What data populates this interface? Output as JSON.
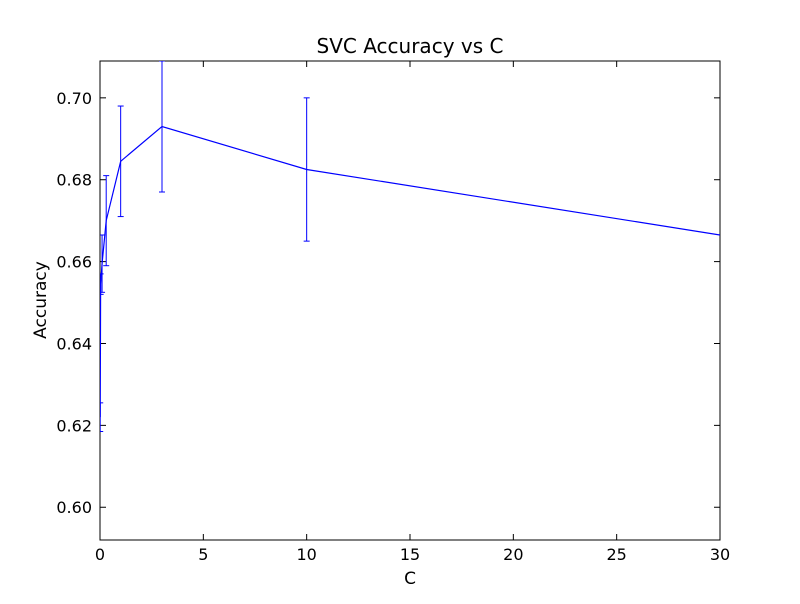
{
  "chart_data": {
    "type": "line",
    "title": "SVC Accuracy vs C",
    "xlabel": "C",
    "ylabel": "Accuracy",
    "xlim": [
      0,
      30
    ],
    "ylim": [
      0.592,
      0.709
    ],
    "x_ticks": [
      0,
      5,
      10,
      15,
      20,
      25,
      30
    ],
    "x_tick_labels": [
      "0",
      "5",
      "10",
      "15",
      "20",
      "25",
      "30"
    ],
    "y_ticks": [
      0.6,
      0.62,
      0.64,
      0.66,
      0.68,
      0.7
    ],
    "y_tick_labels": [
      "0.60",
      "0.62",
      "0.64",
      "0.66",
      "0.68",
      "0.70"
    ],
    "grid": false,
    "series": [
      {
        "color": "#0000ff",
        "x": [
          0.01,
          0.03,
          0.1,
          0.3,
          1,
          3,
          10,
          30
        ],
        "y": [
          0.622,
          0.6545,
          0.6595,
          0.67,
          0.6845,
          0.693,
          0.6825,
          0.6665
        ],
        "err": [
          0.0035,
          0.0025,
          0.007,
          0.011,
          0.0135,
          0.016,
          0.0175,
          0.0
        ]
      }
    ]
  }
}
